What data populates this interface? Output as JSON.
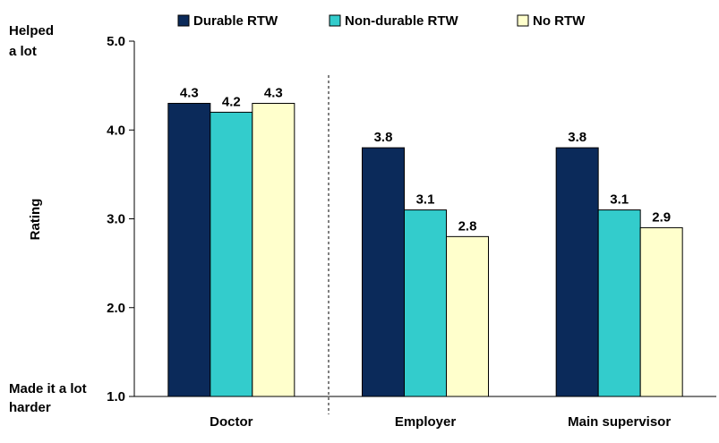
{
  "chart_data": {
    "type": "bar",
    "categories": [
      "Doctor",
      "Employer",
      "Main supervisor"
    ],
    "series": [
      {
        "name": "Durable RTW",
        "values": [
          4.3,
          3.8,
          3.8
        ],
        "color": "#0b2a5a"
      },
      {
        "name": "Non-durable RTW",
        "values": [
          4.2,
          3.1,
          3.1
        ],
        "color": "#33cccc"
      },
      {
        "name": "No RTW",
        "values": [
          4.3,
          2.8,
          2.9
        ],
        "color": "#ffffcc"
      }
    ],
    "data_labels": [
      [
        "4.3",
        "3.8",
        "3.8"
      ],
      [
        "4.2",
        "3.1",
        "3.1"
      ],
      [
        "4.3",
        "2.8",
        "2.9"
      ]
    ],
    "ylabel": "Rating",
    "ylim": [
      1.0,
      5.0
    ],
    "yticks": [
      "1.0",
      "2.0",
      "3.0",
      "4.0",
      "5.0"
    ],
    "y_top_anchor": [
      "Helped",
      "a lot"
    ],
    "y_bottom_anchor": [
      "Made it a lot",
      "harder"
    ],
    "legend_position": "top",
    "divider": "dashed line between Doctor and Employer",
    "bar_outline_color": "#000000"
  }
}
